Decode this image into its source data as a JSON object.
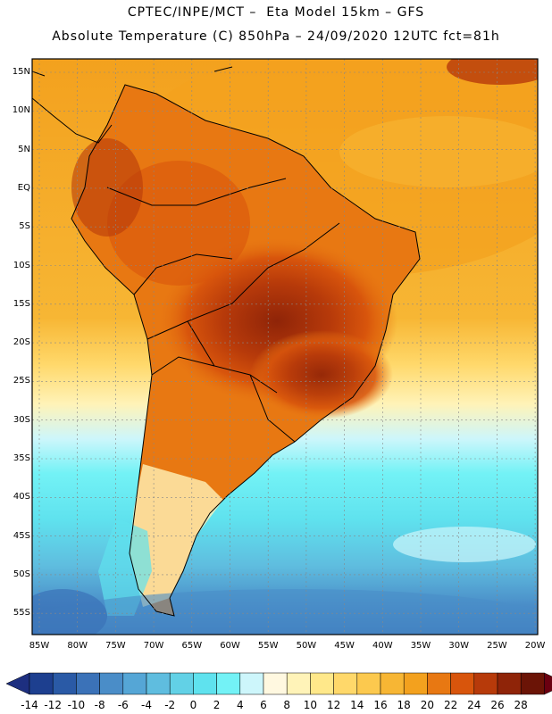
{
  "header": {
    "line1": "CPTEC/INPE/MCT –  Eta Model 15km – GFS",
    "line2": "Absolute Temperature (C) 850hPa – 24/09/2020 12UTC fct=81h"
  },
  "axes": {
    "lat_labels": [
      "15N",
      "10N",
      "5N",
      "EQ",
      "5S",
      "10S",
      "15S",
      "20S",
      "25S",
      "30S",
      "35S",
      "40S",
      "45S",
      "50S",
      "55S"
    ],
    "lon_labels": [
      "85W",
      "80W",
      "75W",
      "70W",
      "65W",
      "60W",
      "55W",
      "50W",
      "45W",
      "40W",
      "35W",
      "30W",
      "25W",
      "20W"
    ]
  },
  "colorbar": {
    "labels": [
      "-14",
      "-12",
      "-10",
      "-8",
      "-6",
      "-4",
      "-2",
      "0",
      "2",
      "4",
      "6",
      "8",
      "10",
      "12",
      "14",
      "16",
      "18",
      "20",
      "22",
      "24",
      "26",
      "28"
    ],
    "colors": [
      "#1d3f8f",
      "#2a5aa6",
      "#3b72b8",
      "#4a8dc8",
      "#55a6d6",
      "#5fbddf",
      "#62d1e6",
      "#5fe2ee",
      "#73f2f6",
      "#cdf6fb",
      "#fff8e0",
      "#fff3b8",
      "#ffe88a",
      "#ffd86a",
      "#fcc94e",
      "#f7b634",
      "#f3a11e",
      "#e87812",
      "#d8550c",
      "#b73a0a",
      "#8f2408",
      "#6b1406"
    ],
    "min_arrow_color": "#1d2f80",
    "max_arrow_color": "#6b0010"
  }
}
